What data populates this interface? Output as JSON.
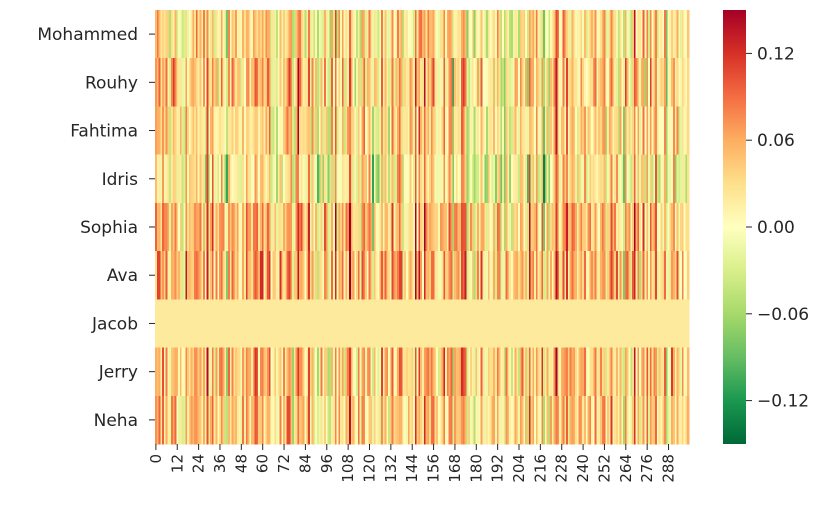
{
  "chart_data": {
    "type": "heatmap",
    "title": "",
    "xlabel": "",
    "ylabel": "",
    "rows": [
      "Mohammed",
      "Rouhy",
      "Fahtima",
      "Idris",
      "Sophia",
      "Ava",
      "Jacob",
      "Jerry",
      "Neha"
    ],
    "columns": {
      "start": 0,
      "count": 300,
      "step": 1
    },
    "x_tick_labels": [
      "0",
      "12",
      "24",
      "36",
      "48",
      "60",
      "72",
      "84",
      "96",
      "108",
      "120",
      "132",
      "144",
      "156",
      "168",
      "180",
      "192",
      "204",
      "216",
      "228",
      "240",
      "252",
      "264",
      "276",
      "288"
    ],
    "colormap": "RdYlGn_r",
    "colormap_stops": [
      "#006837",
      "#1a9850",
      "#66bd63",
      "#a6d96a",
      "#d9ef8b",
      "#ffffbf",
      "#fee08b",
      "#fdae61",
      "#f46d43",
      "#d73027",
      "#a50026"
    ],
    "value_range": [
      -0.15,
      0.15
    ],
    "colorbar_ticks": [
      {
        "value": 0.12,
        "label": "0.12"
      },
      {
        "value": 0.06,
        "label": "0.06"
      },
      {
        "value": 0.0,
        "label": "0.00"
      },
      {
        "value": -0.06,
        "label": "−0.06"
      },
      {
        "value": -0.12,
        "label": "−0.12"
      }
    ],
    "row_profiles": [
      {
        "name": "Mohammed",
        "mean": 0.02,
        "spread": 0.045
      },
      {
        "name": "Rouhy",
        "mean": 0.03,
        "spread": 0.05
      },
      {
        "name": "Fahtima",
        "mean": 0.025,
        "spread": 0.045
      },
      {
        "name": "Idris",
        "mean": 0.01,
        "spread": 0.05
      },
      {
        "name": "Sophia",
        "mean": 0.045,
        "spread": 0.05
      },
      {
        "name": "Ava",
        "mean": 0.045,
        "spread": 0.05
      },
      {
        "name": "Jacob",
        "mean": 0.02,
        "spread": 0.0
      },
      {
        "name": "Jerry",
        "mean": 0.04,
        "spread": 0.045
      },
      {
        "name": "Neha",
        "mean": 0.035,
        "spread": 0.045
      }
    ],
    "values_note": "Per-cell values are not individually legible; cells are generated from each row's mean and spread, rows sharing a common column pattern."
  }
}
